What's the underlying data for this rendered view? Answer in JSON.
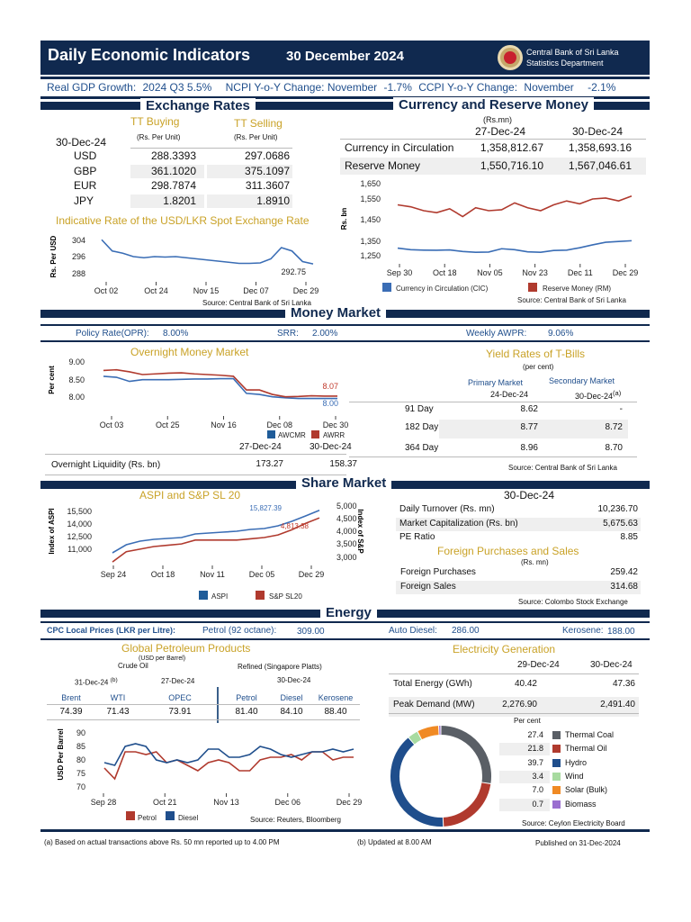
{
  "header": {
    "title": "Daily Economic Indicators",
    "date": "30 December 2024",
    "org": "Central Bank of Sri Lanka",
    "dept": "Statistics Department"
  },
  "summary": {
    "gdp_label": "Real GDP Growth:",
    "gdp_year": "2024",
    "gdp_q": "Q3",
    "gdp_val": "5.5%",
    "ncpi_label": "NCPI Y-o-Y Change:",
    "ncpi_month": "November",
    "ncpi_val": "-1.7%",
    "ccpi_label": "CCPI Y-o-Y Change:",
    "ccpi_month": "November",
    "ccpi_val": "-2.1%"
  },
  "exchange": {
    "title": "Exchange Rates",
    "date": "30-Dec-24",
    "buy": "TT Buying",
    "sell": "TT Selling",
    "unit": "(Rs. Per Unit)",
    "rows": [
      {
        "c": "USD",
        "b": "288.3393",
        "s": "297.0686"
      },
      {
        "c": "GBP",
        "b": "361.1020",
        "s": "375.1097"
      },
      {
        "c": "EUR",
        "b": "298.7874",
        "s": "311.3607"
      },
      {
        "c": "JPY",
        "b": "1.8201",
        "s": "1.8910"
      }
    ],
    "chart_title": "Indicative Rate of the USD/LKR Spot Exchange Rate",
    "ylabel": "Rs. Per USD",
    "yticks": [
      "304",
      "296",
      "288"
    ],
    "xticks": [
      "Oct 02",
      "Oct 24",
      "Nov 15",
      "Dec 07",
      "Dec 29"
    ],
    "last": "292.75",
    "source": "Source: Central Bank of Sri Lanka"
  },
  "currency": {
    "title": "Currency and Reserve Money",
    "unit": "(Rs.mn)",
    "d1": "27-Dec-24",
    "d2": "30-Dec-24",
    "rows": [
      {
        "l": "Currency in Circulation",
        "v1": "1,358,812.67",
        "v2": "1,358,693.16"
      },
      {
        "l": "Reserve Money",
        "v1": "1,550,716.10",
        "v2": "1,567,046.61"
      }
    ],
    "ylabel": "Rs. bn",
    "yticks": [
      "1,650",
      "1,550",
      "1,450",
      "1,350",
      "1,250"
    ],
    "xticks": [
      "Sep 30",
      "Oct 18",
      "Nov 05",
      "Nov 23",
      "Dec 11",
      "Dec 29"
    ],
    "leg1": "Currency in Circulation (CIC)",
    "leg2": "Reserve Money (RM)",
    "source": "Source: Central Bank of Sri Lanka"
  },
  "money": {
    "title": "Money Market",
    "opr_l": "Policy Rate(OPR):",
    "opr": "8.00%",
    "srr_l": "SRR:",
    "srr": "2.00%",
    "awpr_l": "Weekly AWPR:",
    "awpr": "9.06%",
    "chart_title": "Overnight Money Market",
    "ylabel": "Per cent",
    "yticks": [
      "9.00",
      "8.50",
      "8.00"
    ],
    "xticks": [
      "Oct 03",
      "Oct 25",
      "Nov 16",
      "Dec 08",
      "Dec 30"
    ],
    "awrr_last": "8.07",
    "awcmr_last": "8.00",
    "leg1": "AWCMR",
    "leg2": "AWRR",
    "liq_d1": "27-Dec-24",
    "liq_d2": "30-Dec-24",
    "liq_l": "Overnight Liquidity (Rs. bn)",
    "liq_v1": "173.27",
    "liq_v2": "158.37",
    "tb_title": "Yield Rates of T-Bills",
    "tb_unit": "(per cent)",
    "pm": "Primary Market",
    "pm_d": "24-Dec-24",
    "sm": "Secondary Market",
    "sm_d": "30-Dec-24",
    "sm_note": "(a)",
    "tb": [
      {
        "l": "91 Day",
        "p": "8.62",
        "s": "-"
      },
      {
        "l": "182 Day",
        "p": "8.77",
        "s": "8.72"
      },
      {
        "l": "364 Day",
        "p": "8.96",
        "s": "8.70"
      }
    ],
    "source": "Source: Central Bank of Sri Lanka"
  },
  "share": {
    "title": "Share Market",
    "chart_title": "ASPI and S&P SL 20",
    "ylabel": "Index of ASPI",
    "ylabel2": "Index of S&P",
    "yticks": [
      "15,500",
      "14,000",
      "12,500",
      "11,000"
    ],
    "yticks2": [
      "5,000",
      "4,500",
      "4,000",
      "3,500",
      "3,000"
    ],
    "xticks": [
      "Sep 24",
      "Oct 18",
      "Nov 11",
      "Dec 05",
      "Dec 29"
    ],
    "aspi_last": "15,827.39",
    "sp_last": "4,813.38",
    "leg1": "ASPI",
    "leg2": "S&P SL20",
    "date": "30-Dec-24",
    "rows": [
      {
        "l": "Daily Turnover (Rs. mn)",
        "v": "10,236.70"
      },
      {
        "l": "Market Capitalization (Rs. bn)",
        "v": "5,675.63"
      },
      {
        "l": "PE Ratio",
        "v": "8.85"
      }
    ],
    "fps_title": "Foreign Purchases and Sales",
    "fps_unit": "(Rs. mn)",
    "fps": [
      {
        "l": "Foreign Purchases",
        "v": "259.42"
      },
      {
        "l": "Foreign Sales",
        "v": "314.68"
      }
    ],
    "source": "Source: Colombo Stock Exchange"
  },
  "energy": {
    "title": "Energy",
    "cpc_l": "CPC Local Prices (LKR per Litre):",
    "pet_l": "Petrol (92 octane):",
    "pet": "309.00",
    "die_l": "Auto Diesel:",
    "die": "286.00",
    "ker_l": "Kerosene:",
    "ker": "188.00",
    "gp_title": "Global Petroleum Products",
    "gp_unit": "(USD per Barrel)",
    "crude": "Crude Oil",
    "refined": "Refined (Singapore Platts)",
    "d1": "31-Dec-24",
    "d1_note": "(b)",
    "d2": "27-Dec-24",
    "d3": "30-Dec-24",
    "cols": [
      {
        "l": "Brent",
        "v": "74.39"
      },
      {
        "l": "WTI",
        "v": "71.43"
      },
      {
        "l": "OPEC",
        "v": "73.91"
      },
      {
        "l": "Petrol",
        "v": "81.40"
      },
      {
        "l": "Diesel",
        "v": "84.10"
      },
      {
        "l": "Kerosene",
        "v": "88.40"
      }
    ],
    "ylabel": "USD Per Barrel",
    "yticks": [
      "90",
      "85",
      "80",
      "75",
      "70"
    ],
    "xticks": [
      "Sep 28",
      "Oct 21",
      "Nov 13",
      "Dec 06",
      "Dec 29"
    ],
    "leg1": "Petrol",
    "leg2": "Diesel",
    "gp_source": "Source: Reuters, Bloomberg",
    "el_title": "Electricity Generation",
    "el_d1": "29-Dec-24",
    "el_d2": "30-Dec-24",
    "el_rows": [
      {
        "l": "Total Energy (GWh)",
        "v1": "40.42",
        "v2": "47.36"
      },
      {
        "l": "Peak Demand (MW)",
        "v1": "2,276.90",
        "v2": "2,491.40"
      }
    ],
    "pc": "Per cent",
    "el_source": "Source: Ceylon Electricity Board"
  },
  "footer": {
    "note_a": "(a) Based on actual transactions above Rs. 50 mn reported up to 4.00 PM",
    "note_b": "(b) Updated at 8.00 AM",
    "published": "Published on 31-Dec-2024"
  },
  "chart_data": [
    {
      "type": "line",
      "title": "Indicative Rate of the USD/LKR Spot Exchange Rate",
      "ylabel": "Rs. Per USD",
      "ylim": [
        286,
        306
      ],
      "series": [
        {
          "values": [
            303.5,
            298.5,
            297.5,
            296,
            295.5,
            296,
            295.8,
            296,
            295.5,
            295,
            294.5,
            294,
            293.5,
            293,
            293,
            293.2,
            295,
            300,
            298.5,
            293.8,
            292.75
          ]
        }
      ],
      "colors": [
        "#3a6db5"
      ]
    },
    {
      "type": "line",
      "ylabel": "Rs. bn",
      "ylim": [
        1200,
        1680
      ],
      "series": [
        {
          "name": "Currency in Circulation (CIC)",
          "values": [
            1308,
            1300,
            1298,
            1297,
            1299,
            1291,
            1287,
            1288,
            1305,
            1300,
            1289,
            1287,
            1296,
            1298,
            1310,
            1325,
            1338,
            1342,
            1346
          ]
        },
        {
          "name": "Reserve Money (RM)",
          "values": [
            1530,
            1520,
            1500,
            1490,
            1510,
            1470,
            1515,
            1500,
            1505,
            1540,
            1515,
            1500,
            1530,
            1550,
            1535,
            1560,
            1565,
            1550,
            1575
          ]
        }
      ],
      "colors": [
        "#3a6db5",
        "#b03a2e"
      ]
    },
    {
      "type": "line",
      "title": "Overnight Money Market",
      "ylabel": "Per cent",
      "ylim": [
        7.7,
        9.2
      ],
      "series": [
        {
          "name": "AWCMR",
          "values": [
            8.65,
            8.62,
            8.5,
            8.55,
            8.55,
            8.55,
            8.56,
            8.57,
            8.57,
            8.58,
            8.58,
            8.15,
            8.12,
            8.05,
            8.02,
            8.0,
            8.0,
            8.0,
            8.0
          ]
        },
        {
          "name": "AWRR",
          "values": [
            8.82,
            8.84,
            8.78,
            8.7,
            8.72,
            8.74,
            8.75,
            8.72,
            8.7,
            8.68,
            8.65,
            8.25,
            8.25,
            8.12,
            8.05,
            8.06,
            8.08,
            8.07,
            8.07
          ]
        }
      ],
      "colors": [
        "#3a6db5",
        "#b03a2e"
      ]
    },
    {
      "type": "line",
      "title": "ASPI and S&P SL 20",
      "series": [
        {
          "name": "ASPI",
          "values": [
            11100,
            12000,
            12400,
            12600,
            12700,
            12800,
            13200,
            13300,
            13400,
            13500,
            13700,
            13800,
            14100,
            14600,
            15200,
            15827.39
          ]
        },
        {
          "name": "S&P SL20",
          "values": [
            3100,
            3500,
            3600,
            3700,
            3750,
            3800,
            3950,
            3950,
            3950,
            3950,
            4000,
            4050,
            4150,
            4350,
            4600,
            4813.38
          ]
        }
      ],
      "colors": [
        "#3a6db5",
        "#b03a2e"
      ]
    },
    {
      "type": "line",
      "ylabel": "USD Per Barrel",
      "ylim": [
        68,
        92
      ],
      "series": [
        {
          "name": "Petrol",
          "values": [
            77,
            73,
            83,
            83,
            82,
            83,
            79,
            80,
            78,
            76,
            79,
            80,
            79,
            76,
            76,
            80,
            81,
            81,
            82,
            80,
            83,
            83,
            80,
            81,
            81
          ]
        },
        {
          "name": "Diesel",
          "values": [
            79,
            78,
            85,
            86,
            85,
            80,
            79,
            80,
            79,
            80,
            84,
            84,
            81,
            81,
            82,
            85,
            84,
            82,
            81,
            82,
            83,
            83,
            84,
            83,
            84
          ]
        }
      ],
      "colors": [
        "#b03a2e",
        "#1f4e8c"
      ]
    },
    {
      "type": "pie",
      "title": "Per cent",
      "categories": [
        "Thermal Coal",
        "Thermal Oil",
        "Hydro",
        "Wind",
        "Solar (Bulk)",
        "Biomass"
      ],
      "values": [
        27.4,
        21.8,
        39.7,
        3.4,
        7.0,
        0.7
      ],
      "labels": [
        "27.4",
        "21.8",
        "39.7",
        "3.4",
        "7.0",
        "0.7"
      ],
      "colors": [
        "#5a5f66",
        "#b03a2e",
        "#1f4e8c",
        "#a8dba0",
        "#f08a24",
        "#9b6fd0"
      ]
    }
  ]
}
